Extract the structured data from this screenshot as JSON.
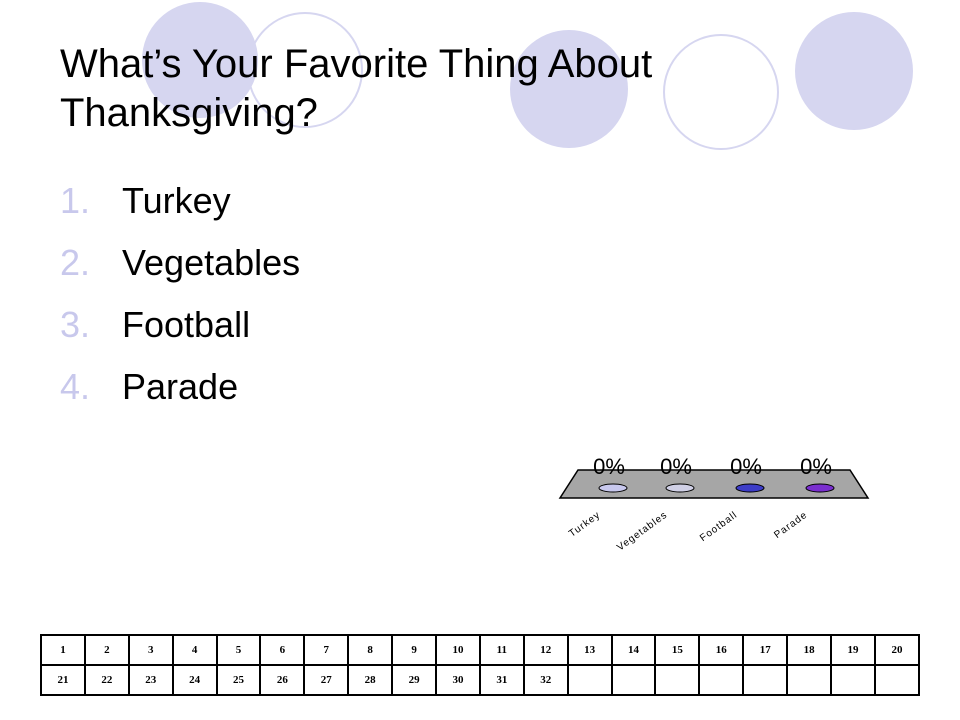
{
  "slide": {
    "title": "What’s Your Favorite Thing About Thanksgiving?",
    "options": [
      {
        "number": "1.",
        "label": "Turkey"
      },
      {
        "number": "2.",
        "label": "Vegetables"
      },
      {
        "number": "3.",
        "label": "Football"
      },
      {
        "number": "4.",
        "label": "Parade"
      }
    ]
  },
  "chart_data": {
    "type": "bar",
    "categories": [
      "Turkey",
      "Vegetables",
      "Football",
      "Parade"
    ],
    "values": [
      0,
      0,
      0,
      0
    ],
    "value_labels": [
      "0%",
      "0%",
      "0%",
      "0%"
    ],
    "colors": [
      "#c8c8ee",
      "#d0d0e6",
      "#3d3dc8",
      "#7a2fcf"
    ],
    "title": "",
    "xlabel": "",
    "ylabel": ""
  },
  "response_grid": {
    "rows": [
      [
        "1",
        "2",
        "3",
        "4",
        "5",
        "6",
        "7",
        "8",
        "9",
        "10",
        "11",
        "12",
        "13",
        "14",
        "15",
        "16",
        "17",
        "18",
        "19",
        "20"
      ],
      [
        "21",
        "22",
        "23",
        "24",
        "25",
        "26",
        "27",
        "28",
        "29",
        "30",
        "31",
        "32",
        "",
        "",
        "",
        "",
        "",
        "",
        "",
        ""
      ]
    ]
  },
  "theme": {
    "accent": "#d6d6f0",
    "number_color": "#c8c8ec"
  }
}
